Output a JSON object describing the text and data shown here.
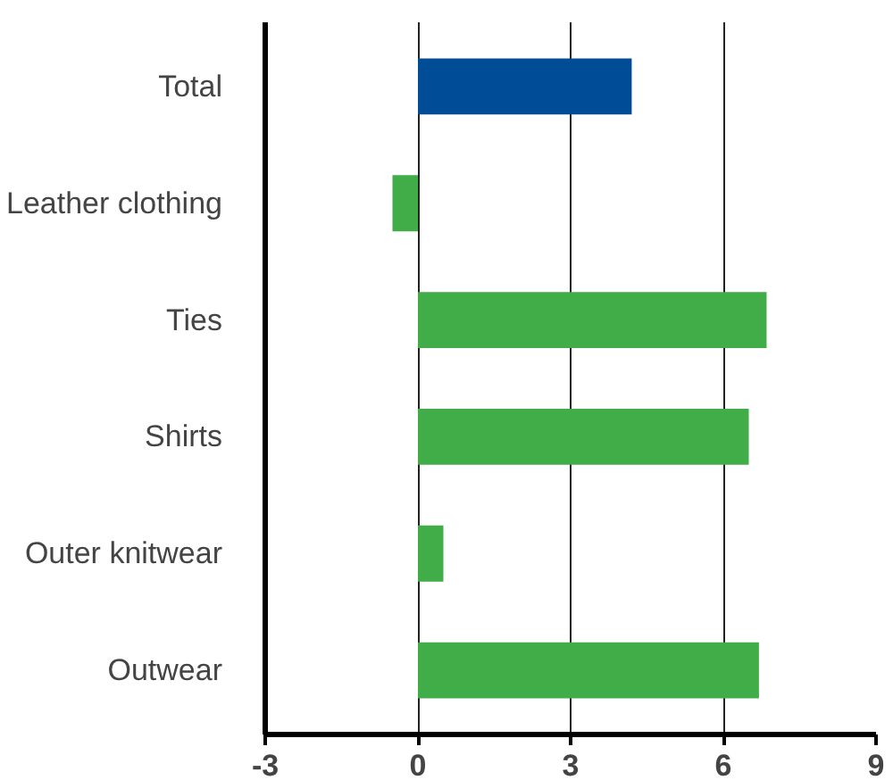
{
  "chart_data": {
    "type": "bar",
    "orientation": "horizontal",
    "categories": [
      "Total",
      "Leather clothing",
      "Ties",
      "Shirts",
      "Outer knitwear",
      "Outwear"
    ],
    "values": [
      4.2,
      -0.5,
      6.85,
      6.5,
      0.5,
      6.7
    ],
    "colors": [
      "#004c97",
      "#41ad49",
      "#41ad49",
      "#41ad49",
      "#41ad49",
      "#41ad49"
    ],
    "xlim": [
      -3,
      9
    ],
    "xticks": [
      -3,
      0,
      3,
      6,
      9
    ],
    "grid": "x"
  }
}
